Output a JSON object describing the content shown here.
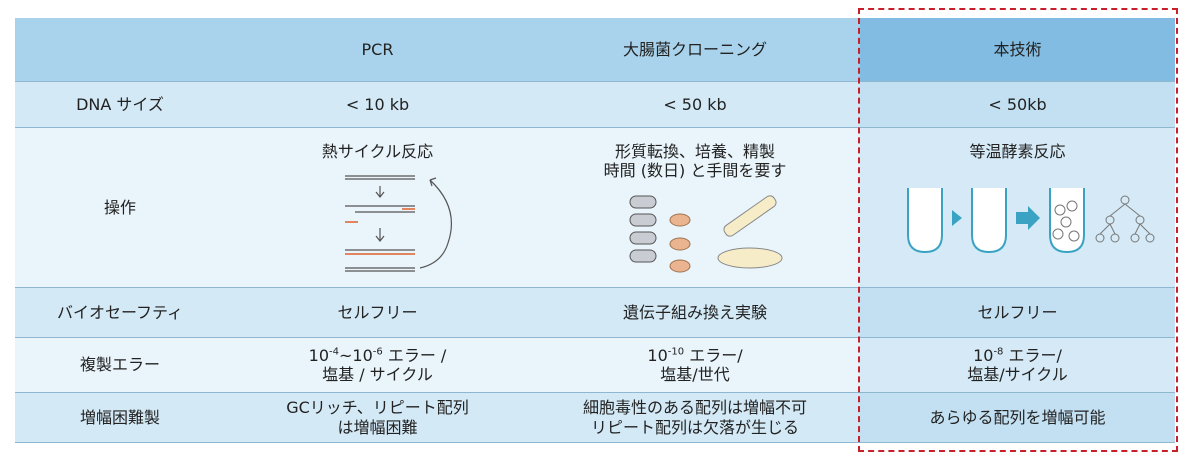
{
  "table": {
    "columns": [
      "PCR",
      "大腸菌クローニング",
      "本技術"
    ],
    "rows": [
      {
        "label": "DNA サイズ",
        "cells": [
          [
            "< 10 kb"
          ],
          [
            "< 50 kb"
          ],
          [
            "< 50kb"
          ]
        ]
      },
      {
        "label": "操作",
        "cells": [
          [
            "熱サイクル反応"
          ],
          [
            "形質転換、培養、精製",
            "時間 (数日) と手間を要す"
          ],
          [
            "等温酵素反応"
          ]
        ]
      },
      {
        "label": "バイオセーフティ",
        "cells": [
          [
            "セルフリー"
          ],
          [
            "遺伝子組み換え実験"
          ],
          [
            "セルフリー"
          ]
        ]
      },
      {
        "label": "複製エラー",
        "cells": [
          [
            [
              {
                "text": "10"
              },
              {
                "sup": "-4"
              },
              {
                "text": "~10"
              },
              {
                "sup": "-6"
              },
              {
                "text": " エラー /"
              }
            ],
            "塩基 / サイクル"
          ],
          [
            [
              {
                "text": "10"
              },
              {
                "sup": "-10"
              },
              {
                "text": " エラー/"
              }
            ],
            "塩基/世代"
          ],
          [
            [
              {
                "text": "10"
              },
              {
                "sup": "-8"
              },
              {
                "text": " エラー/"
              }
            ],
            "塩基/サイクル"
          ]
        ]
      },
      {
        "label": "増幅困難製",
        "cells": [
          [
            "GCリッチ、リピート配列",
            "は増幅困難"
          ],
          [
            "細胞毒性のある配列は増幅不可",
            "リピート配列は欠落が生じる"
          ],
          [
            "あらゆる配列を増幅可能"
          ]
        ]
      }
    ]
  }
}
